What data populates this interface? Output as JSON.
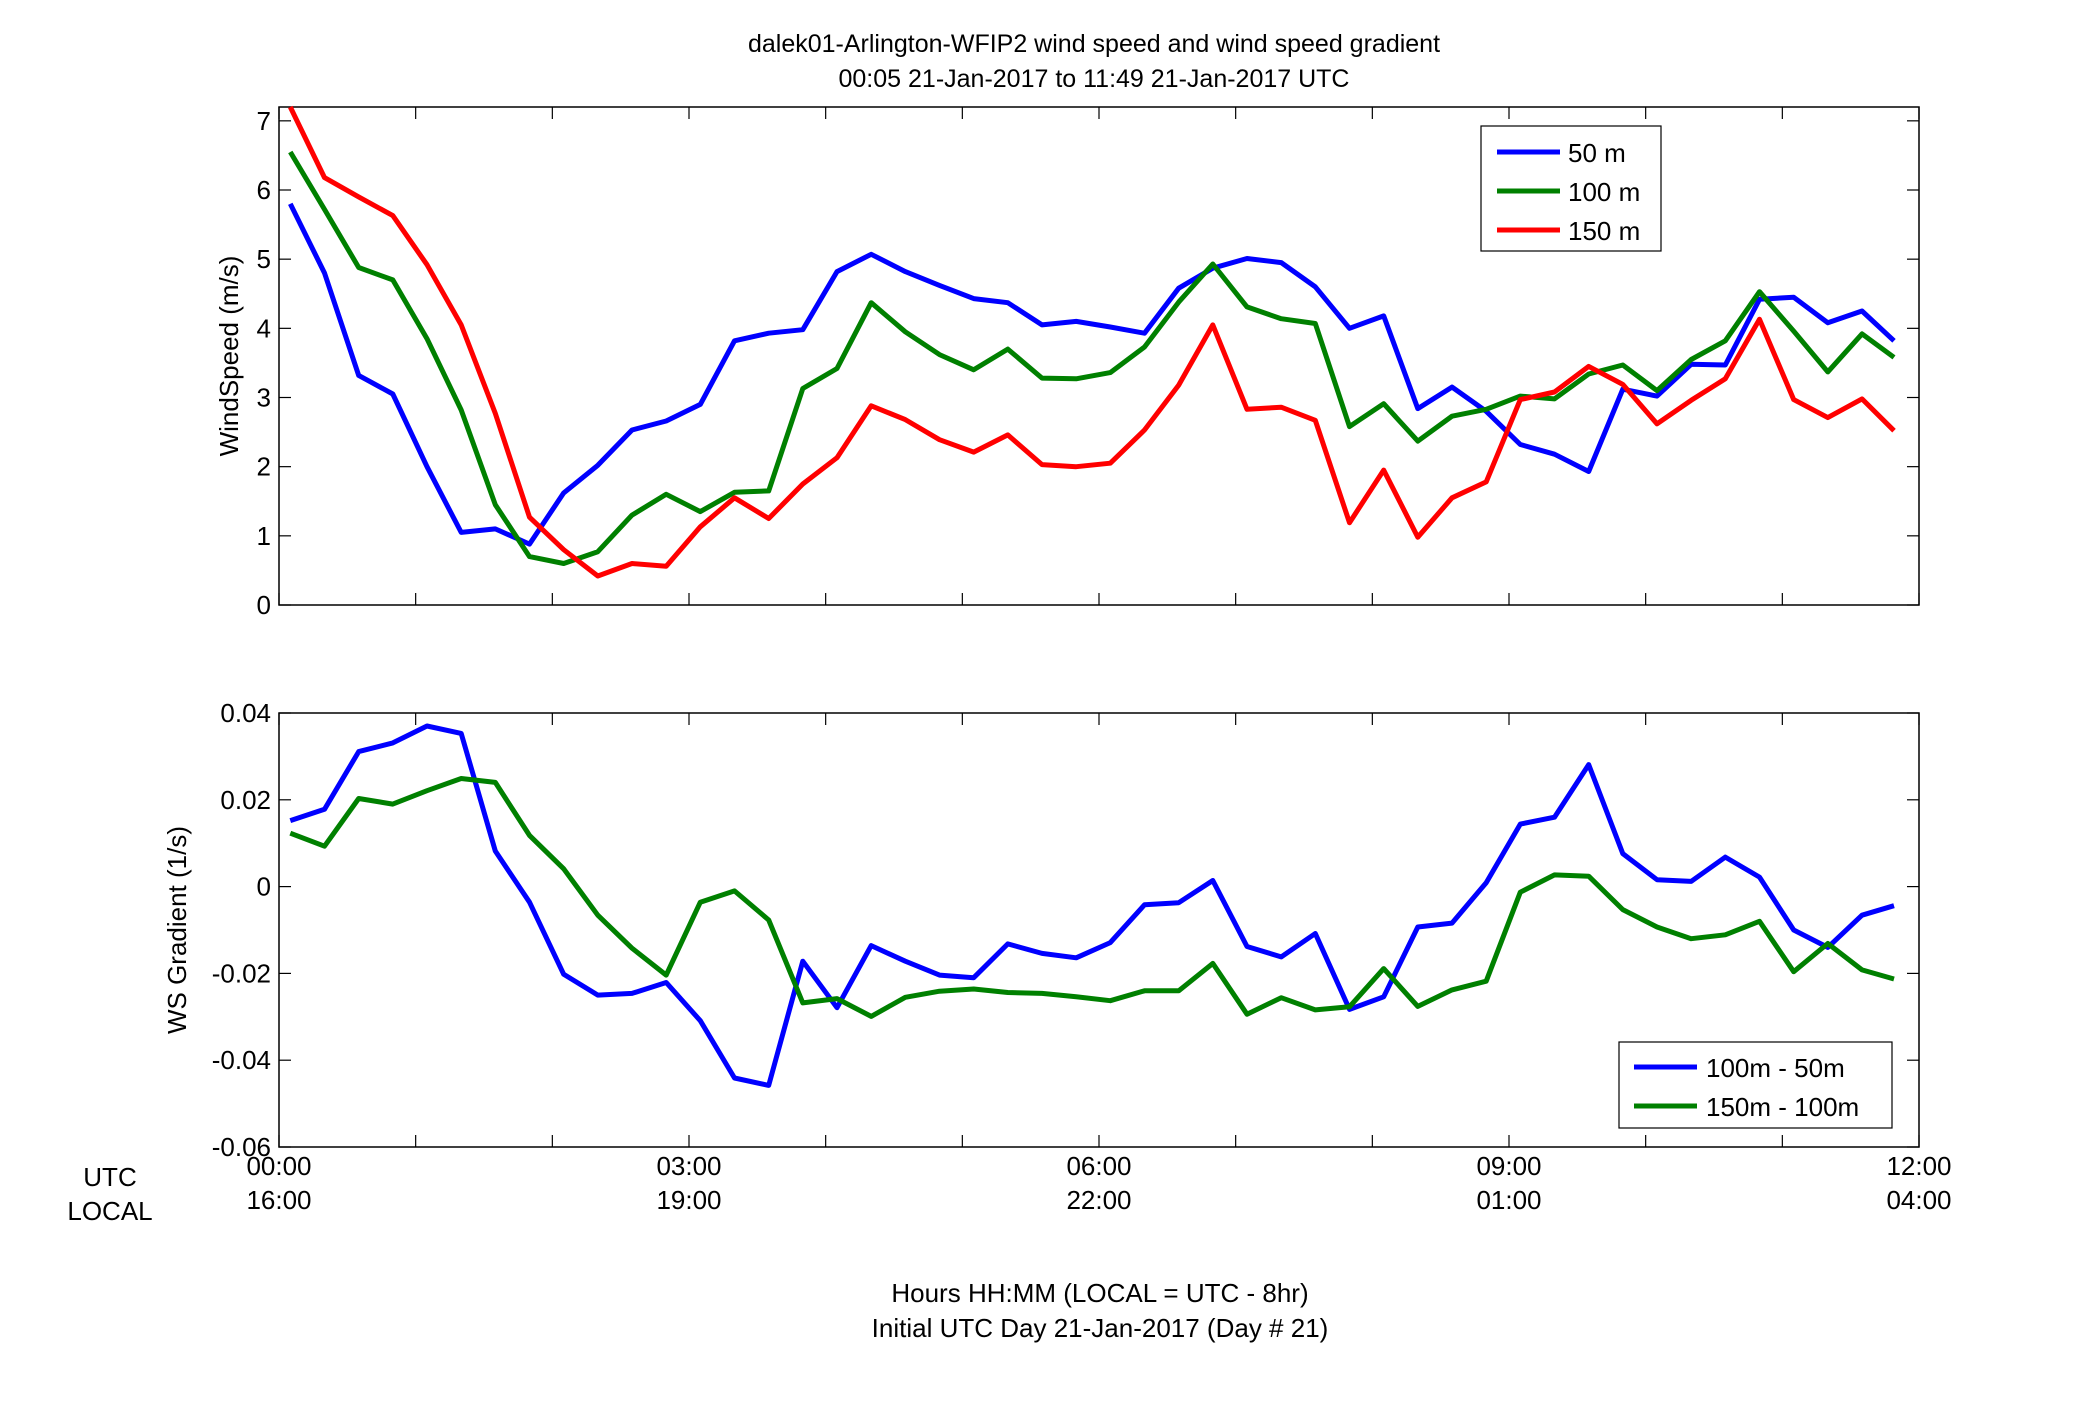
{
  "title": {
    "line1": "dalek01-Arlington-WFIP2  wind speed and wind speed gradient",
    "line2": "00:05 21-Jan-2017 to 11:49 21-Jan-2017  UTC"
  },
  "time_axis": {
    "utc_label": "UTC",
    "local_label": "LOCAL",
    "utc_ticks": [
      "00:00",
      "03:00",
      "06:00",
      "09:00",
      "12:00"
    ],
    "local_ticks": [
      "16:00",
      "19:00",
      "22:00",
      "01:00",
      "04:00"
    ],
    "caption_line1": "Hours HH:MM  (LOCAL = UTC - 8hr)",
    "caption_line2": "Initial UTC Day 21-Jan-2017 (Day # 21)"
  },
  "chart_data": [
    {
      "type": "line",
      "ylabel": "WindSpeed (m/s)",
      "xlim": [
        0,
        12
      ],
      "ylim": [
        0,
        7.2
      ],
      "yticks": [
        "0",
        "1",
        "2",
        "3",
        "4",
        "5",
        "6",
        "7"
      ],
      "ytick_values": [
        0,
        1,
        2,
        3,
        4,
        5,
        6,
        7
      ],
      "legend_position": "top-right",
      "x": [
        0.083,
        0.333,
        0.583,
        0.833,
        1.083,
        1.333,
        1.583,
        1.833,
        2.083,
        2.333,
        2.583,
        2.833,
        3.083,
        3.333,
        3.583,
        3.833,
        4.083,
        4.333,
        4.583,
        4.833,
        5.083,
        5.333,
        5.583,
        5.833,
        6.083,
        6.333,
        6.583,
        6.833,
        7.083,
        7.333,
        7.583,
        7.833,
        8.083,
        8.333,
        8.583,
        8.833,
        9.083,
        9.333,
        9.583,
        9.833,
        10.083,
        10.333,
        10.583,
        10.833,
        11.083,
        11.333,
        11.583,
        11.817
      ],
      "series": [
        {
          "name": "50 m",
          "color": "#0000ff",
          "values": [
            5.8,
            4.8,
            3.32,
            3.05,
            2.0,
            1.05,
            1.1,
            0.88,
            1.62,
            2.02,
            2.53,
            2.66,
            2.9,
            3.82,
            3.93,
            3.98,
            4.82,
            5.07,
            4.82,
            4.62,
            4.43,
            4.37,
            4.05,
            4.1,
            4.02,
            3.93,
            4.58,
            4.87,
            5.01,
            4.95,
            4.6,
            4.0,
            4.18,
            2.84,
            3.15,
            2.8,
            2.32,
            2.18,
            1.93,
            3.12,
            3.02,
            3.48,
            3.47,
            4.42,
            4.45,
            4.08,
            4.25,
            3.82
          ]
        },
        {
          "name": "100 m",
          "color": "#008000",
          "values": [
            6.55,
            5.72,
            4.88,
            4.7,
            3.85,
            2.82,
            1.45,
            0.7,
            0.6,
            0.77,
            1.3,
            1.6,
            1.35,
            1.63,
            1.65,
            3.13,
            3.42,
            4.37,
            3.95,
            3.62,
            3.4,
            3.7,
            3.28,
            3.27,
            3.36,
            3.73,
            4.38,
            4.93,
            4.31,
            4.14,
            4.07,
            2.58,
            2.91,
            2.37,
            2.73,
            2.83,
            3.02,
            2.98,
            3.34,
            3.47,
            3.1,
            3.55,
            3.82,
            4.53,
            3.96,
            3.37,
            3.92,
            3.58
          ]
        },
        {
          "name": "150 m",
          "color": "#ff0000",
          "values": [
            7.2,
            6.18,
            5.9,
            5.63,
            4.92,
            4.05,
            2.77,
            1.27,
            0.8,
            0.42,
            0.6,
            0.56,
            1.13,
            1.55,
            1.25,
            1.75,
            2.13,
            2.88,
            2.68,
            2.39,
            2.21,
            2.46,
            2.03,
            2.0,
            2.05,
            2.53,
            3.18,
            4.05,
            2.83,
            2.86,
            2.67,
            1.19,
            1.95,
            0.98,
            1.55,
            1.78,
            2.97,
            3.08,
            3.45,
            3.19,
            2.62,
            2.96,
            3.27,
            4.13,
            2.97,
            2.71,
            2.98,
            2.52
          ]
        }
      ]
    },
    {
      "type": "line",
      "ylabel": "WS Gradient (1/s)",
      "xlim": [
        0,
        12
      ],
      "ylim": [
        -0.06,
        0.04
      ],
      "yticks": [
        "-0.06",
        "-0.04",
        "-0.02",
        "0",
        "0.02",
        "0.04"
      ],
      "ytick_values": [
        -0.06,
        -0.04,
        -0.02,
        0,
        0.02,
        0.04
      ],
      "legend_position": "bottom-right",
      "x": [
        0.083,
        0.333,
        0.583,
        0.833,
        1.083,
        1.333,
        1.583,
        1.833,
        2.083,
        2.333,
        2.583,
        2.833,
        3.083,
        3.333,
        3.583,
        3.833,
        4.083,
        4.333,
        4.583,
        4.833,
        5.083,
        5.333,
        5.583,
        5.833,
        6.083,
        6.333,
        6.583,
        6.833,
        7.083,
        7.333,
        7.583,
        7.833,
        8.083,
        8.333,
        8.583,
        8.833,
        9.083,
        9.333,
        9.583,
        9.833,
        10.083,
        10.333,
        10.583,
        10.833,
        11.083,
        11.333,
        11.583,
        11.817
      ],
      "series": [
        {
          "name": "100m - 50m",
          "color": "#0000ff",
          "values": [
            0.0152,
            0.0178,
            0.0311,
            0.0331,
            0.037,
            0.0353,
            0.0082,
            -0.0036,
            -0.0202,
            -0.025,
            -0.0246,
            -0.0221,
            -0.0309,
            -0.0441,
            -0.0458,
            -0.0172,
            -0.0279,
            -0.0136,
            -0.0172,
            -0.0204,
            -0.021,
            -0.0132,
            -0.0154,
            -0.0164,
            -0.0129,
            -0.0042,
            -0.0037,
            0.0014,
            -0.0138,
            -0.0162,
            -0.0108,
            -0.0283,
            -0.0254,
            -0.0093,
            -0.0084,
            0.0009,
            0.0144,
            0.016,
            0.0281,
            0.0076,
            0.0016,
            0.0012,
            0.0068,
            0.0022,
            -0.01,
            -0.014,
            -0.0066,
            -0.0044
          ]
        },
        {
          "name": "150m - 100m",
          "color": "#008000",
          "values": [
            0.0123,
            0.0093,
            0.0203,
            0.019,
            0.0221,
            0.0249,
            0.024,
            0.0118,
            0.0041,
            -0.0066,
            -0.0142,
            -0.0204,
            -0.0036,
            -0.001,
            -0.0077,
            -0.0268,
            -0.0258,
            -0.0299,
            -0.0255,
            -0.0241,
            -0.0236,
            -0.0244,
            -0.0246,
            -0.0254,
            -0.0263,
            -0.024,
            -0.024,
            -0.0177,
            -0.0294,
            -0.0256,
            -0.0284,
            -0.0277,
            -0.0189,
            -0.0276,
            -0.0238,
            -0.0218,
            -0.0013,
            0.0027,
            0.0024,
            -0.0053,
            -0.0093,
            -0.012,
            -0.0111,
            -0.008,
            -0.0196,
            -0.0131,
            -0.0192,
            -0.0213
          ]
        }
      ]
    }
  ]
}
